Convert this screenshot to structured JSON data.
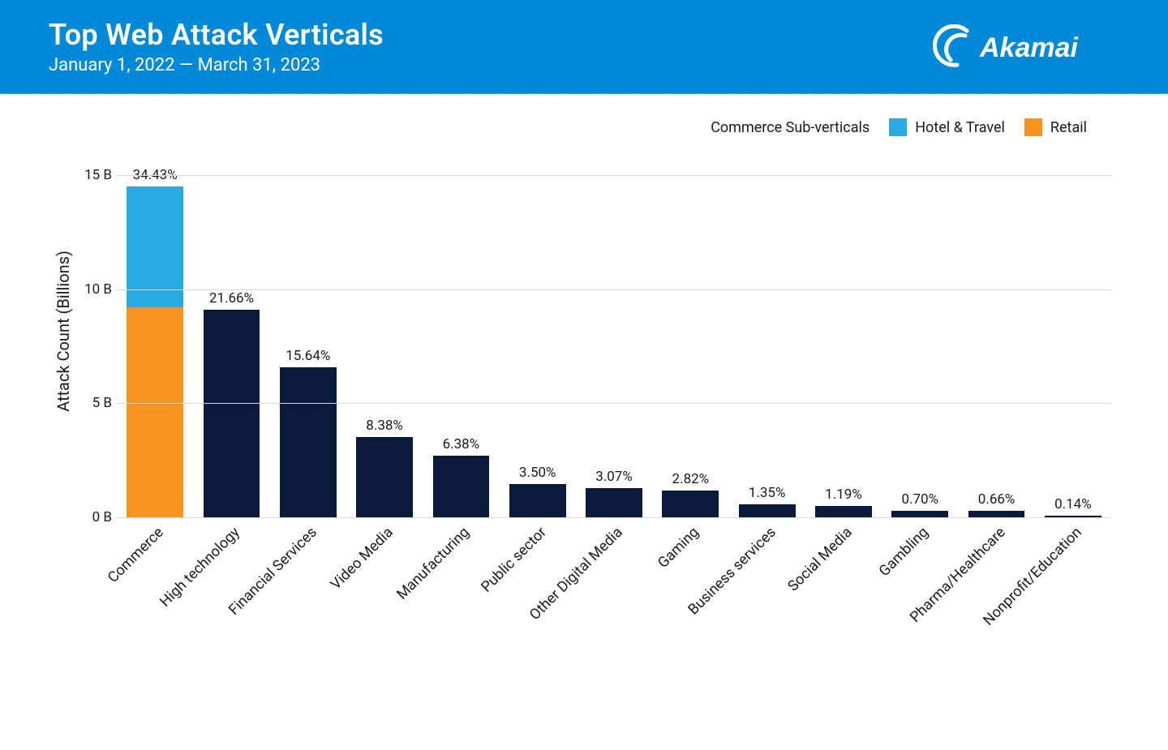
{
  "header": {
    "title": "Top Web Attack Verticals",
    "subtitle": "January 1, 2022 — March 31, 2023",
    "brand": "Akamai",
    "bg_color": "#0089d6",
    "text_color": "#ffffff"
  },
  "legend": {
    "title": "Commerce Sub-verticals",
    "items": [
      {
        "label": "Hotel & Travel",
        "color": "#29abe2"
      },
      {
        "label": "Retail",
        "color": "#f7931e"
      }
    ]
  },
  "chart": {
    "type": "stacked-bar",
    "y_label": "Attack Count (Billions)",
    "y_max": 16,
    "y_ticks": [
      {
        "value": 0,
        "label": "0 B"
      },
      {
        "value": 5,
        "label": "5 B"
      },
      {
        "value": 10,
        "label": "10 B"
      },
      {
        "value": 15,
        "label": "15 B"
      }
    ],
    "grid_color": "#d9d9d9",
    "default_bar_color": "#0a1a3a",
    "label_fontsize": 18,
    "tick_fontsize": 17,
    "bar_width_ratio": 0.74,
    "bars": [
      {
        "category": "Commerce",
        "pct_label": "34.43%",
        "total": 14.5,
        "segments": [
          {
            "name": "Hotel & Travel",
            "value": 5.3,
            "color": "#29abe2"
          },
          {
            "name": "Retail",
            "value": 9.2,
            "color": "#f7931e"
          }
        ]
      },
      {
        "category": "High technology",
        "pct_label": "21.66%",
        "total": 9.12,
        "segments": [
          {
            "value": 9.12
          }
        ]
      },
      {
        "category": "Financial Services",
        "pct_label": "15.64%",
        "total": 6.59,
        "segments": [
          {
            "value": 6.59
          }
        ]
      },
      {
        "category": "Video Media",
        "pct_label": "8.38%",
        "total": 3.53,
        "segments": [
          {
            "value": 3.53
          }
        ]
      },
      {
        "category": "Manufacturing",
        "pct_label": "6.38%",
        "total": 2.69,
        "segments": [
          {
            "value": 2.69
          }
        ]
      },
      {
        "category": "Public sector",
        "pct_label": "3.50%",
        "total": 1.47,
        "segments": [
          {
            "value": 1.47
          }
        ]
      },
      {
        "category": "Other Digital Media",
        "pct_label": "3.07%",
        "total": 1.29,
        "segments": [
          {
            "value": 1.29
          }
        ]
      },
      {
        "category": "Gaming",
        "pct_label": "2.82%",
        "total": 1.19,
        "segments": [
          {
            "value": 1.19
          }
        ]
      },
      {
        "category": "Business services",
        "pct_label": "1.35%",
        "total": 0.57,
        "segments": [
          {
            "value": 0.57
          }
        ]
      },
      {
        "category": "Social Media",
        "pct_label": "1.19%",
        "total": 0.5,
        "segments": [
          {
            "value": 0.5
          }
        ]
      },
      {
        "category": "Gambling",
        "pct_label": "0.70%",
        "total": 0.29,
        "segments": [
          {
            "value": 0.29
          }
        ]
      },
      {
        "category": "Pharma/Healthcare",
        "pct_label": "0.66%",
        "total": 0.28,
        "segments": [
          {
            "value": 0.28
          }
        ]
      },
      {
        "category": "Nonprofit/Education",
        "pct_label": "0.14%",
        "total": 0.06,
        "segments": [
          {
            "value": 0.06
          }
        ]
      }
    ]
  }
}
